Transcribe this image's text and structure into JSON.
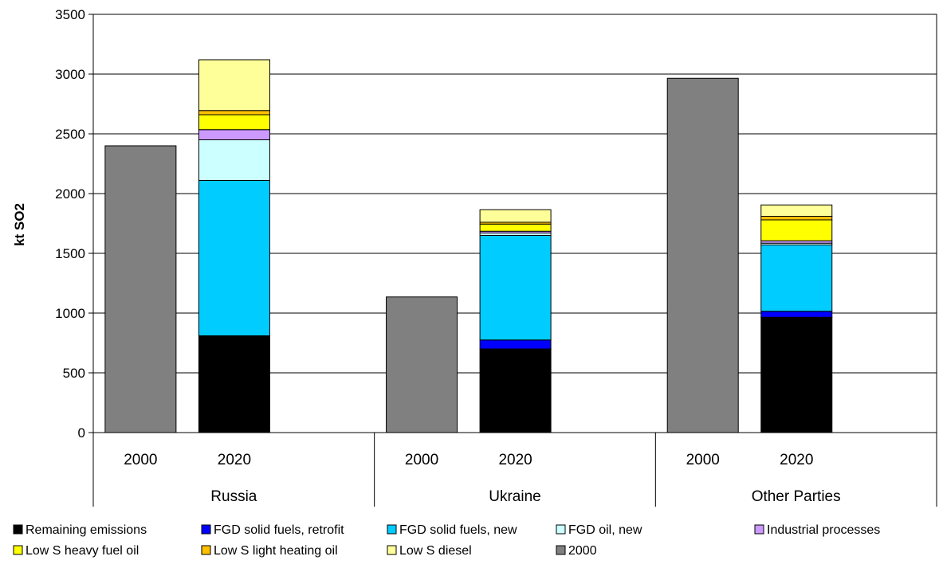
{
  "chart_data": {
    "type": "bar",
    "stacked": true,
    "title": "",
    "xlabel": "",
    "ylabel": "kt SO2",
    "ylim": [
      0,
      3500
    ],
    "yticks": [
      0,
      500,
      1000,
      1500,
      2000,
      2500,
      3000,
      3500
    ],
    "grid": true,
    "legend_position": "bottom",
    "groups": [
      {
        "name": "Russia",
        "bars": [
          {
            "year": "2000",
            "values": {
              "2000": 2400
            }
          },
          {
            "year": "2020",
            "values": {
              "Remaining emissions": 810,
              "FGD solid fuels, retrofit": 0,
              "FGD solid fuels, new": 1300,
              "FGD oil, new": 340,
              "Industrial processes": 85,
              "Low S heavy fuel oil": 125,
              "Low S light heating oil": 35,
              "Low S diesel": 425
            }
          }
        ]
      },
      {
        "name": "Ukraine",
        "bars": [
          {
            "year": "2000",
            "values": {
              "2000": 1135
            }
          },
          {
            "year": "2020",
            "values": {
              "Remaining emissions": 700,
              "FGD solid fuels, retrofit": 75,
              "FGD solid fuels, new": 875,
              "FGD oil, new": 20,
              "Industrial processes": 15,
              "Low S heavy fuel oil": 60,
              "Low S light heating oil": 15,
              "Low S diesel": 105
            }
          }
        ]
      },
      {
        "name": "Other Parties",
        "bars": [
          {
            "year": "2000",
            "values": {
              "2000": 2965
            }
          },
          {
            "year": "2020",
            "values": {
              "Remaining emissions": 965,
              "FGD solid fuels, retrofit": 50,
              "FGD solid fuels, new": 555,
              "FGD oil, new": 15,
              "Industrial processes": 20,
              "Low S heavy fuel oil": 175,
              "Low S light heating oil": 30,
              "Low S diesel": 95
            }
          }
        ]
      }
    ],
    "series": [
      {
        "name": "Remaining emissions",
        "color": "#000000"
      },
      {
        "name": "FGD solid fuels, retrofit",
        "color": "#0000ff"
      },
      {
        "name": "FGD solid fuels, new",
        "color": "#00ccff"
      },
      {
        "name": "FGD oil, new",
        "color": "#ccffff"
      },
      {
        "name": "Industrial processes",
        "color": "#cc99ff"
      },
      {
        "name": "Low S heavy fuel oil",
        "color": "#ffff00"
      },
      {
        "name": "Low S light heating oil",
        "color": "#ffc000"
      },
      {
        "name": "Low S diesel",
        "color": "#ffff99"
      },
      {
        "name": "2000",
        "color": "#808080"
      }
    ]
  }
}
